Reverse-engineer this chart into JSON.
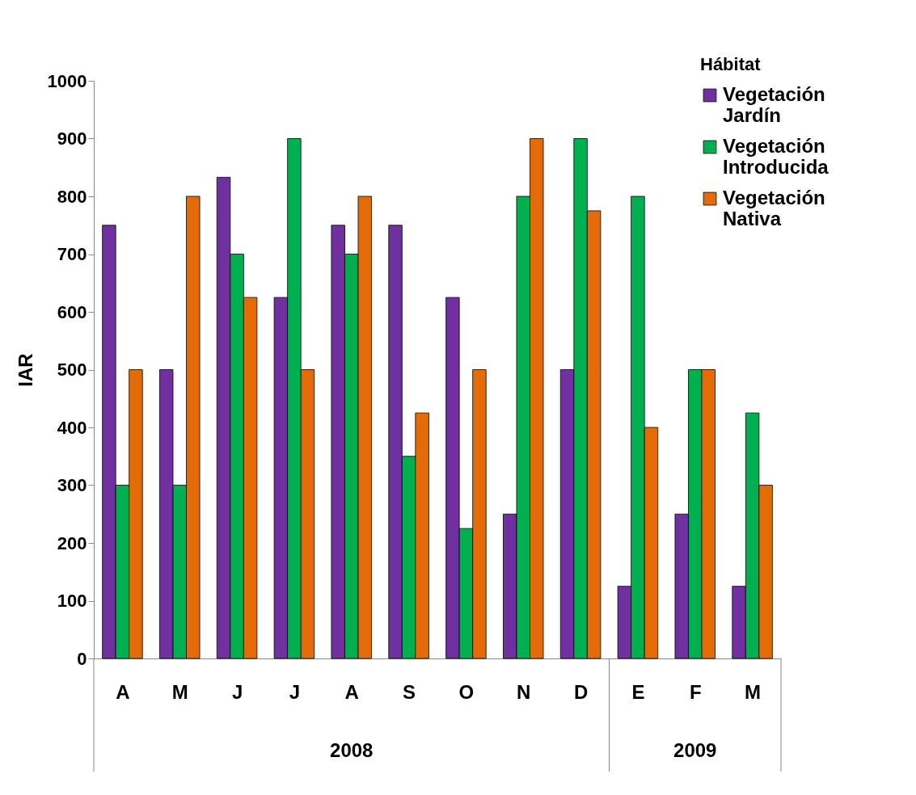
{
  "chart_data": {
    "type": "bar",
    "ylabel": "IAR",
    "legend_title": "Hábitat",
    "legend": "top right",
    "grid": false,
    "categories": [
      "A",
      "M",
      "J",
      "J",
      "A",
      "S",
      "O",
      "N",
      "D",
      "E",
      "F",
      "M"
    ],
    "series": [
      {
        "name": "Vegetación Jardín",
        "color": "#7030a0",
        "values": [
          750,
          500,
          833,
          625,
          750,
          750,
          625,
          250,
          500,
          125,
          250,
          125
        ]
      },
      {
        "name": "Vegetación Introducida",
        "color": "#00b050",
        "values": [
          300,
          300,
          700,
          900,
          700,
          350,
          225,
          800,
          900,
          800,
          500,
          425
        ]
      },
      {
        "name": "Vegetación Nativa",
        "color": "#e36c09",
        "values": [
          500,
          800,
          625,
          500,
          800,
          425,
          500,
          900,
          775,
          400,
          500,
          300
        ]
      }
    ],
    "ylim": [
      0,
      1000
    ],
    "yticks": [
      0,
      100,
      200,
      300,
      400,
      500,
      600,
      700,
      800,
      900,
      1000
    ],
    "annotations": [
      "2008",
      "2009"
    ]
  }
}
